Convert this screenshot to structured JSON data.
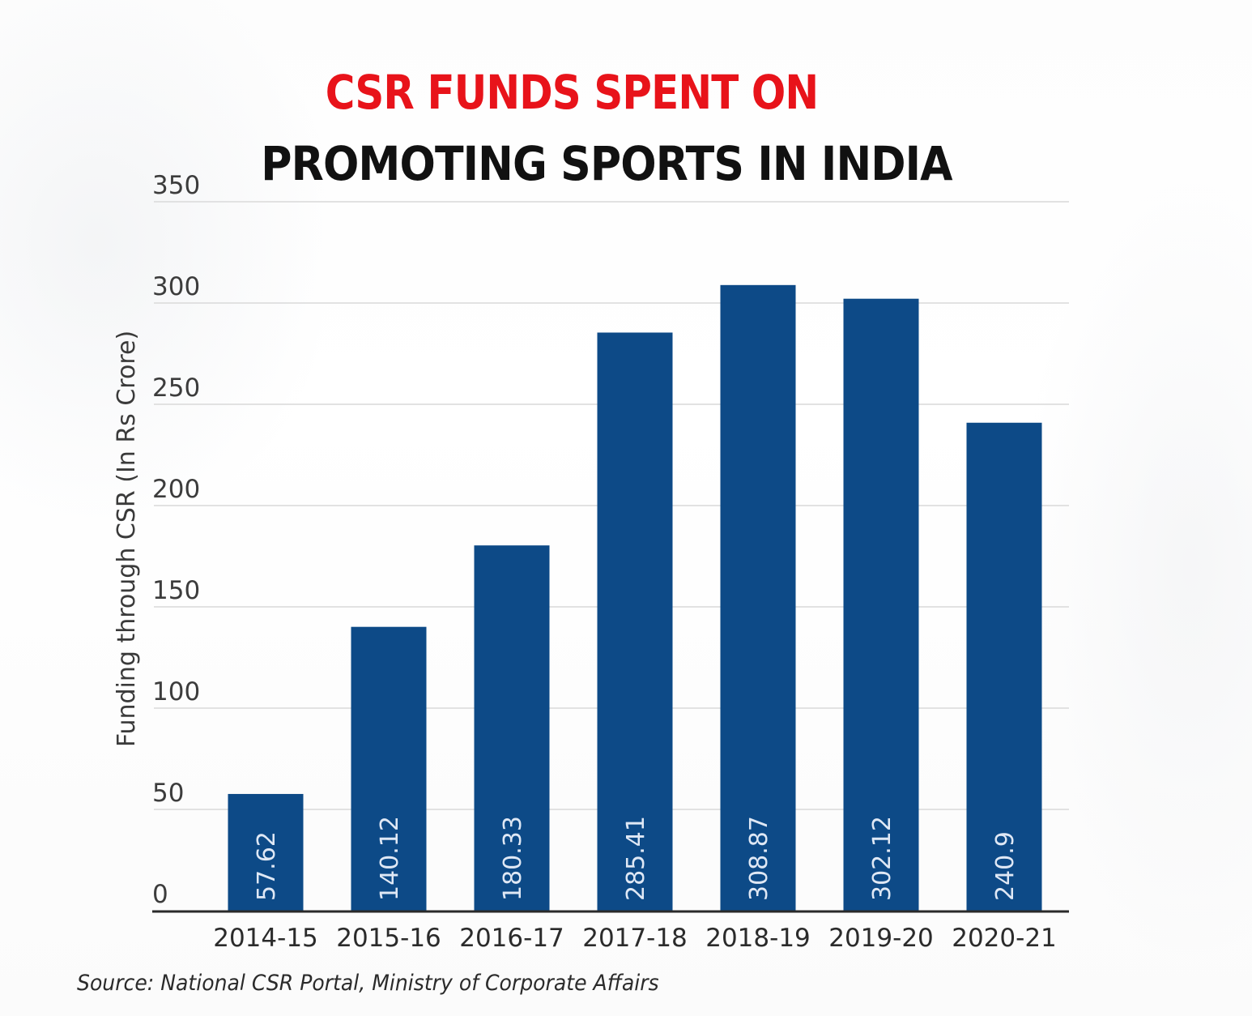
{
  "colors": {
    "title_accent": "#e8131a",
    "title_main": "#111111",
    "bar": "#0d4a87",
    "grid": "#d9d9d9",
    "baseline": "#2a2a2a",
    "bar_label": "#dfe8f5"
  },
  "chart_data": {
    "type": "bar",
    "title_line1": "CSR FUNDS SPENT ON",
    "title_line2": "PROMOTING SPORTS IN INDIA",
    "xlabel": "",
    "ylabel": "Funding through CSR (In Rs Crore)",
    "categories": [
      "2014-15",
      "2015-16",
      "2016-17",
      "2017-18",
      "2018-19",
      "2019-20",
      "2020-21"
    ],
    "values": [
      57.62,
      140.12,
      180.33,
      285.41,
      308.87,
      302.12,
      240.9
    ],
    "value_labels": [
      "57.62",
      "140.12",
      "180.33",
      "285.41",
      "308.87",
      "302.12",
      "240.9"
    ],
    "ylim": [
      0,
      350
    ],
    "yticks": [
      0,
      50,
      100,
      150,
      200,
      250,
      300,
      350
    ],
    "grid": true,
    "legend": "none"
  },
  "source": "Source: National CSR Portal, Ministry of Corporate Affairs"
}
